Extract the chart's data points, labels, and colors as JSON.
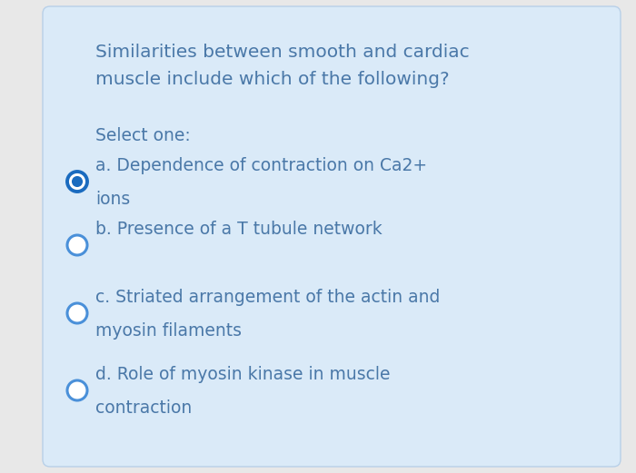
{
  "bg_color": "#e8e8e8",
  "card_color": "#daeaf8",
  "card_edge_color": "#b8d0e8",
  "title_text_line1": "Similarities between smooth and cardiac",
  "title_text_line2": "muscle include which of the following?",
  "select_text": "Select one:",
  "text_color": "#4a78a8",
  "options": [
    {
      "label": "a. Dependence of contraction on Ca2+",
      "line2": "    ions",
      "selected": true
    },
    {
      "label": "b. Presence of a T tubule network",
      "line2": "",
      "selected": false
    },
    {
      "label": "c. Striated arrangement of the actin and",
      "line2": "    myosin filaments",
      "selected": false
    },
    {
      "label": "d. Role of myosin kinase in muscle",
      "line2": "    contraction",
      "selected": false
    }
  ],
  "radio_border_color": "#4a90d9",
  "radio_fill_selected": "#1a6bbf",
  "font_size_title": 14.5,
  "font_size_select": 13.5,
  "font_size_option": 13.5,
  "figsize": [
    7.0,
    5.21
  ],
  "dpi": 100
}
